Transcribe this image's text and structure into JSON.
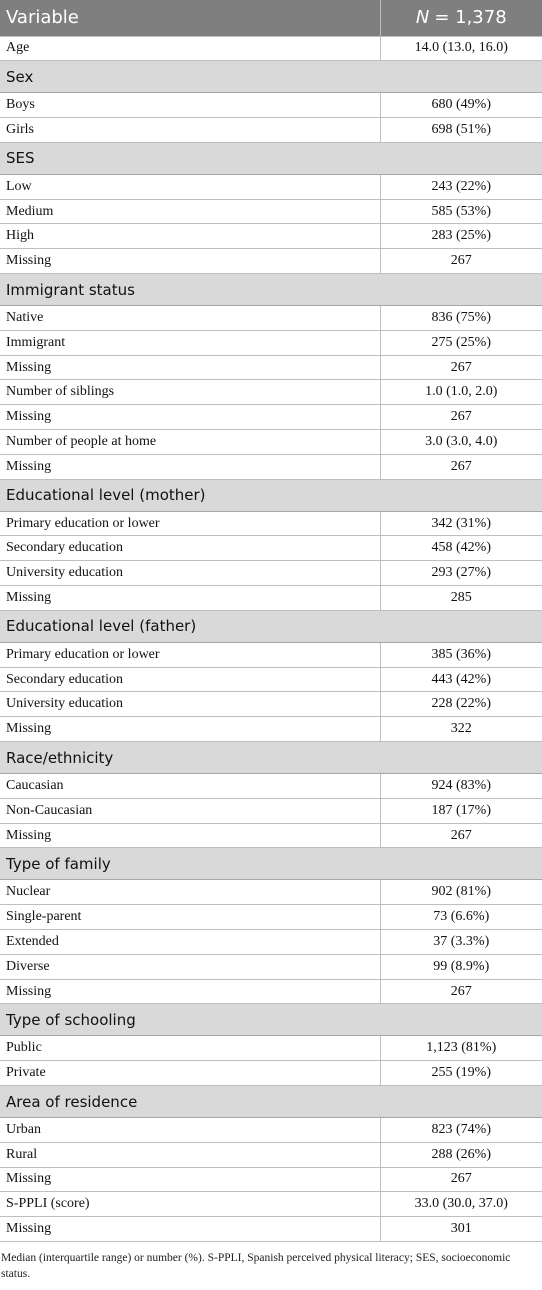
{
  "table": {
    "header": {
      "variable": "Variable",
      "n_symbol": "N",
      "n_value": "= 1,378"
    },
    "rows": [
      {
        "label": "Age",
        "value": "14.0 (13.0, 16.0)"
      },
      {
        "section": "Sex"
      },
      {
        "label": "Boys",
        "value": "680 (49%)"
      },
      {
        "label": "Girls",
        "value": "698 (51%)"
      },
      {
        "section": "SES"
      },
      {
        "label": "Low",
        "value": "243 (22%)"
      },
      {
        "label": "Medium",
        "value": "585 (53%)"
      },
      {
        "label": "High",
        "value": "283 (25%)"
      },
      {
        "label": "Missing",
        "value": "267"
      },
      {
        "section": "Immigrant status"
      },
      {
        "label": "Native",
        "value": "836 (75%)"
      },
      {
        "label": "Immigrant",
        "value": "275 (25%)"
      },
      {
        "label": "Missing",
        "value": "267"
      },
      {
        "label": "Number of siblings",
        "value": "1.0 (1.0, 2.0)"
      },
      {
        "label": "Missing",
        "value": "267"
      },
      {
        "label": "Number of people at home",
        "value": "3.0 (3.0, 4.0)"
      },
      {
        "label": "Missing",
        "value": "267"
      },
      {
        "section": "Educational level (mother)"
      },
      {
        "label": "Primary education or lower",
        "value": "342 (31%)"
      },
      {
        "label": "Secondary education",
        "value": "458 (42%)"
      },
      {
        "label": "University education",
        "value": "293 (27%)"
      },
      {
        "label": "Missing",
        "value": "285"
      },
      {
        "section": "Educational level (father)"
      },
      {
        "label": "Primary education or lower",
        "value": "385 (36%)"
      },
      {
        "label": "Secondary education",
        "value": "443 (42%)"
      },
      {
        "label": "University education",
        "value": "228 (22%)"
      },
      {
        "label": "Missing",
        "value": "322"
      },
      {
        "section": "Race/ethnicity"
      },
      {
        "label": "Caucasian",
        "value": "924 (83%)"
      },
      {
        "label": "Non-Caucasian",
        "value": "187 (17%)"
      },
      {
        "label": "Missing",
        "value": "267"
      },
      {
        "section": "Type of family"
      },
      {
        "label": "Nuclear",
        "value": "902 (81%)"
      },
      {
        "label": "Single-parent",
        "value": "73 (6.6%)"
      },
      {
        "label": "Extended",
        "value": "37 (3.3%)"
      },
      {
        "label": "Diverse",
        "value": "99 (8.9%)"
      },
      {
        "label": "Missing",
        "value": "267"
      },
      {
        "section": "Type of schooling"
      },
      {
        "label": "Public",
        "value": "1,123 (81%)"
      },
      {
        "label": "Private",
        "value": "255 (19%)"
      },
      {
        "section": "Area of residence"
      },
      {
        "label": "Urban",
        "value": "823 (74%)"
      },
      {
        "label": "Rural",
        "value": "288 (26%)"
      },
      {
        "label": "Missing",
        "value": "267"
      },
      {
        "label": "S-PPLI (score)",
        "value": "33.0 (30.0, 37.0)"
      },
      {
        "label": "Missing",
        "value": "301"
      }
    ],
    "footnote": "Median (interquartile range) or number (%). S-PPLI, Spanish perceived physical literacy; SES, socioeconomic status."
  }
}
